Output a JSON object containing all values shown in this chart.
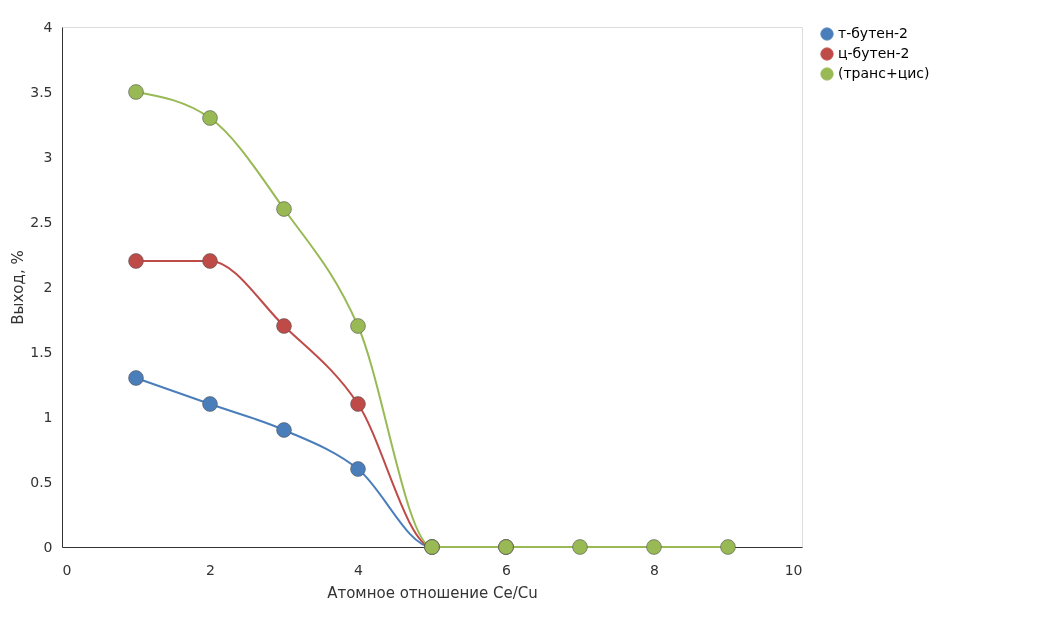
{
  "chart_data": {
    "type": "line",
    "xlabel": "Атомное отношение Ce/Cu",
    "ylabel": "Выход, %",
    "x": [
      1,
      2,
      3,
      4,
      5,
      6,
      7,
      8,
      9
    ],
    "series": [
      {
        "name": "т-бутен-2",
        "color": "#4a7ebb",
        "values": [
          1.3,
          1.1,
          0.9,
          0.6,
          0,
          0,
          null,
          null,
          null
        ]
      },
      {
        "name": "ц-бутен-2",
        "color": "#be4b48",
        "values": [
          2.2,
          2.2,
          1.7,
          1.1,
          0,
          0,
          null,
          null,
          null
        ]
      },
      {
        "name": "(транс+цис)",
        "color": "#98b954",
        "values": [
          3.5,
          3.3,
          2.6,
          1.7,
          0,
          0,
          0,
          0,
          0
        ]
      }
    ],
    "xlim": [
      0,
      10
    ],
    "xticks": [
      0,
      2,
      4,
      6,
      8,
      10
    ],
    "ylim": [
      0,
      4
    ],
    "yticks": [
      0,
      0.5,
      1,
      1.5,
      2,
      2.5,
      3,
      3.5,
      4
    ],
    "grid": false,
    "legend": "right",
    "marker": "circle",
    "line_style": "solid"
  }
}
